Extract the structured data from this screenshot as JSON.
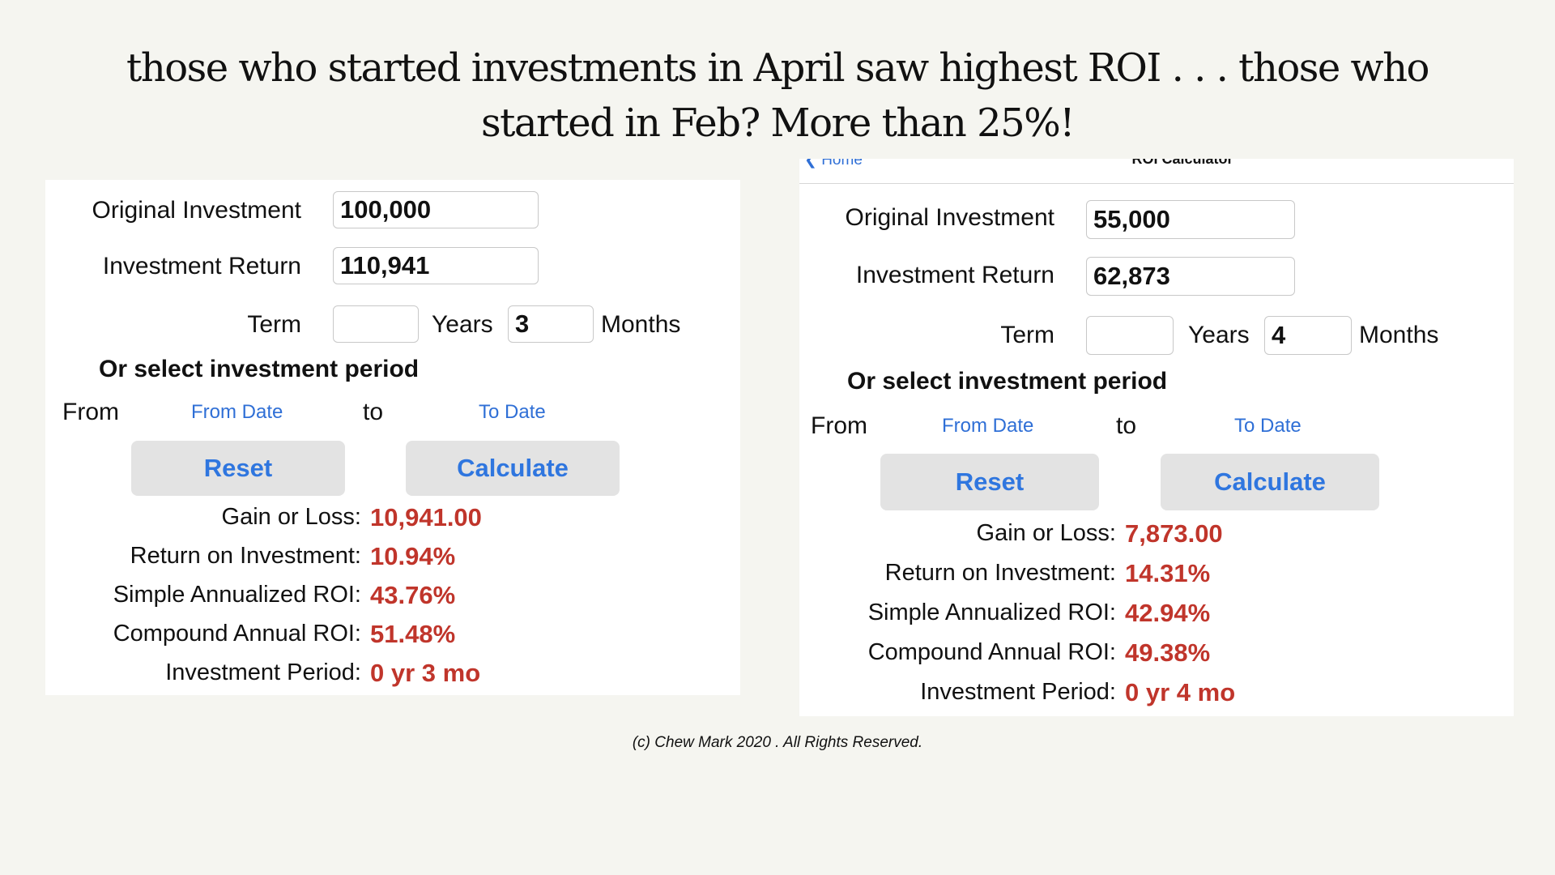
{
  "slide": {
    "title": "those who started investments in April saw highest ROI . . . those who started in Feb? More than 25%!",
    "footer": "(c) Chew Mark 2020 . All Rights Reserved."
  },
  "left": {
    "original_investment_label": "Original Investment",
    "original_investment_value": "100,000",
    "investment_return_label": "Investment Return",
    "investment_return_value": "110,941",
    "term_label": "Term",
    "years_value": "",
    "years_label": "Years",
    "months_value": "3",
    "months_label": "Months",
    "period_heading": "Or select investment period",
    "from_label": "From",
    "from_date_link": "From Date",
    "to_label": "to",
    "to_date_link": "To Date",
    "reset_label": "Reset",
    "calculate_label": "Calculate",
    "results": [
      {
        "label": "Gain or Loss:",
        "value": "10,941.00"
      },
      {
        "label": "Return on Investment:",
        "value": "10.94%"
      },
      {
        "label": "Simple Annualized ROI:",
        "value": "43.76%"
      },
      {
        "label": "Compound Annual ROI:",
        "value": "51.48%"
      },
      {
        "label": "Investment Period:",
        "value": "0 yr 3 mo"
      }
    ]
  },
  "right": {
    "nav_back": "Home",
    "nav_title": "ROI Calculator",
    "original_investment_label": "Original Investment",
    "original_investment_value": "55,000",
    "investment_return_label": "Investment Return",
    "investment_return_value": "62,873",
    "term_label": "Term",
    "years_value": "",
    "years_label": "Years",
    "months_value": "4",
    "months_label": "Months",
    "period_heading": "Or select investment period",
    "from_label": "From",
    "from_date_link": "From Date",
    "to_label": "to",
    "to_date_link": "To Date",
    "reset_label": "Reset",
    "calculate_label": "Calculate",
    "results": [
      {
        "label": "Gain or Loss:",
        "value": "7,873.00"
      },
      {
        "label": "Return on Investment:",
        "value": "14.31%"
      },
      {
        "label": "Simple Annualized ROI:",
        "value": "42.94%"
      },
      {
        "label": "Compound Annual ROI:",
        "value": "49.38%"
      },
      {
        "label": "Investment Period:",
        "value": "0 yr 4 mo"
      }
    ]
  },
  "colors": {
    "background": "#f5f5f0",
    "panel": "#ffffff",
    "link": "#2f6fd6",
    "button_text": "#2f76df",
    "button_bg": "#e3e3e3",
    "result_value": "#c0352b"
  },
  "icons": {
    "back": "chevron-left-icon"
  }
}
